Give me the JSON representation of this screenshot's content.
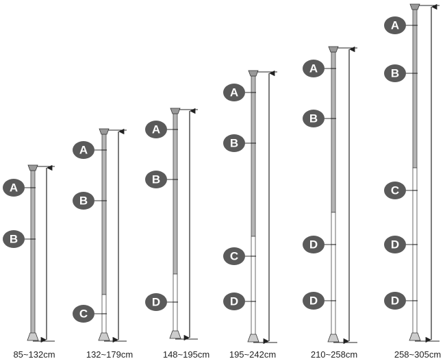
{
  "poles": [
    {
      "size": "85~132cm",
      "markers": [
        "A",
        "B"
      ]
    },
    {
      "size": "132~179cm",
      "markers": [
        "A",
        "B",
        "C"
      ]
    },
    {
      "size": "148~195cm",
      "markers": [
        "A",
        "B",
        "D"
      ]
    },
    {
      "size": "195~242cm",
      "markers": [
        "A",
        "B",
        "C",
        "D"
      ]
    },
    {
      "size": "210~258cm",
      "markers": [
        "A",
        "B",
        "D",
        "D"
      ]
    },
    {
      "size": "258~305cm",
      "markers": [
        "A",
        "B",
        "C",
        "D",
        "D"
      ]
    }
  ]
}
